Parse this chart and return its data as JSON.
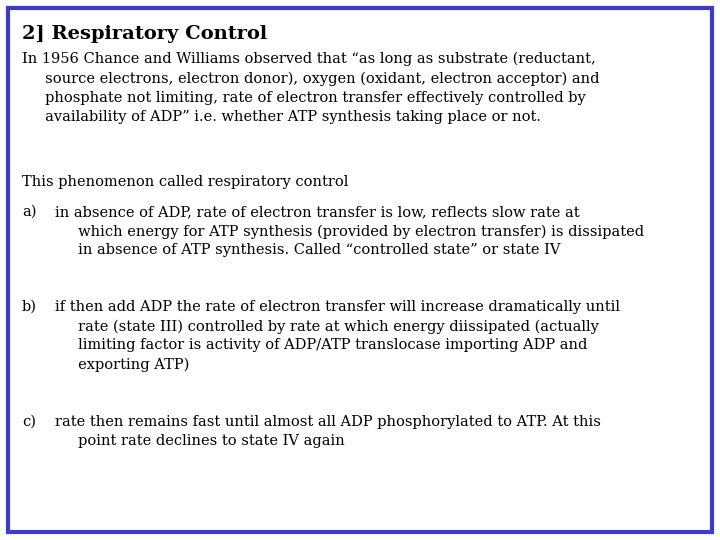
{
  "title": "2] Respiratory Control",
  "background_color": "#ffffff",
  "border_color": "#3c3ccc",
  "text_color": "#000000",
  "title_fontsize": 14,
  "body_fontsize": 10.5,
  "font_family": "DejaVu Serif",
  "line1": "In 1956 Chance and Williams observed that “as long as substrate (reductant,",
  "line2": "     source electrons, electron donor), oxygen (oxidant, electron acceptor) and",
  "line3": "     phosphate not limiting, rate of electron transfer effectively controlled by",
  "line4": "     availability of ADP” i.e. whether ATP synthesis taking place or not.",
  "line5": "This phenomenon called respiratory control",
  "label_a": "a)",
  "line_a1": "in absence of ADP, rate of electron transfer is low, reflects slow rate at",
  "line_a2": "     which energy for ATP synthesis (provided by electron transfer) is dissipated",
  "line_a3": "     in absence of ATP synthesis. Called “controlled state” or state IV",
  "label_b": "b)",
  "line_b1": "if then add ADP the rate of electron transfer will increase dramatically until",
  "line_b2": "     rate (state III) controlled by rate at which energy diissipated (actually",
  "line_b3": "     limiting factor is activity of ADP/ATP translocase importing ADP and",
  "line_b4": "     exporting ATP)",
  "label_c": "c)",
  "line_c1": "rate then remains fast until almost all ADP phosphorylated to ATP. At this",
  "line_c2": "     point rate declines to state IV again"
}
